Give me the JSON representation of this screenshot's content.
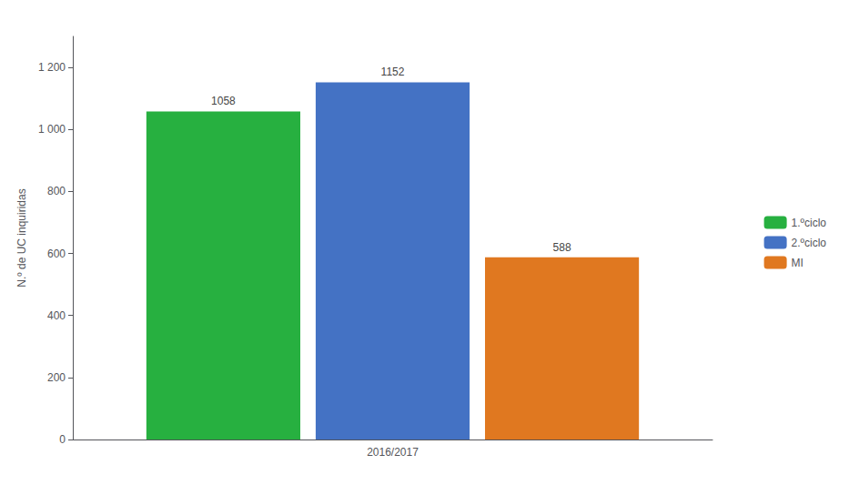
{
  "chart_data": {
    "type": "bar",
    "categories": [
      "2016/2017"
    ],
    "series": [
      {
        "name": "1.ºciclo",
        "color": "#27b040",
        "values": [
          1058
        ]
      },
      {
        "name": "2.ºciclo",
        "color": "#4472c4",
        "values": [
          1152
        ]
      },
      {
        "name": "MI",
        "color": "#e07820",
        "values": [
          588
        ]
      }
    ],
    "ylabel": "N.º de UC inquiridas",
    "ylim": [
      0,
      1300
    ],
    "yticks": [
      0,
      200,
      400,
      600,
      800,
      {
        "value": 1000,
        "label": "1 000"
      },
      {
        "value": 1200,
        "label": "1 200"
      }
    ],
    "grid": false,
    "legend": "right",
    "data_labels": true
  }
}
